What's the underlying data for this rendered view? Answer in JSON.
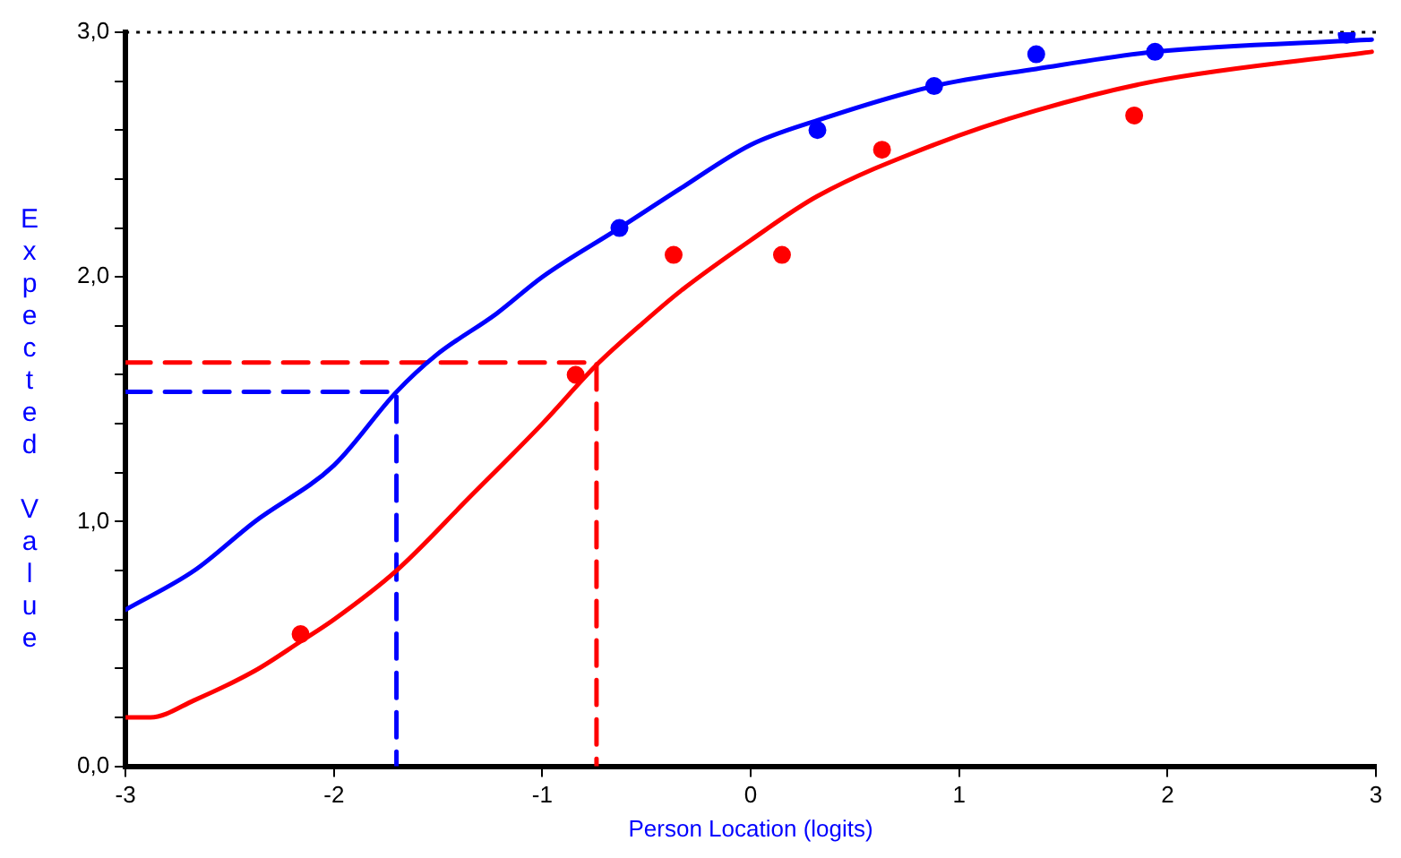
{
  "chart_data": {
    "type": "line",
    "xlabel": "Person Location (logits)",
    "ylabel": "Expected Value",
    "xlim": [
      -3,
      3
    ],
    "xticks": [
      -3,
      -2,
      -1,
      0,
      1,
      2,
      3
    ],
    "ylim": [
      0,
      3
    ],
    "yticks": [
      {
        "value": 0,
        "label": "0,0"
      },
      {
        "value": 0.2,
        "label": null
      },
      {
        "value": 0.4,
        "label": null
      },
      {
        "value": 0.6,
        "label": null
      },
      {
        "value": 0.8,
        "label": null
      },
      {
        "value": 1,
        "label": "1,0"
      },
      {
        "value": 1.2,
        "label": null
      },
      {
        "value": 1.4,
        "label": null
      },
      {
        "value": 1.6,
        "label": null
      },
      {
        "value": 1.8,
        "label": null
      },
      {
        "value": 2,
        "label": "2,0"
      },
      {
        "value": 2.2,
        "label": null
      },
      {
        "value": 2.4,
        "label": null
      },
      {
        "value": 2.6,
        "label": null
      },
      {
        "value": 2.8,
        "label": null
      },
      {
        "value": 3,
        "label": "3,0"
      }
    ],
    "grid": false,
    "legend": false,
    "marker": "none",
    "line_style": "solid",
    "ref_lines": [
      {
        "axis": "y",
        "value": 3,
        "color": "#000000",
        "line_style": "dotted"
      }
    ],
    "series": [
      {
        "color": "#0000ff",
        "x": [
          -3,
          -2.67,
          -2.38,
          -2,
          -1.7,
          -1.51,
          -1.22,
          -1,
          -0.63,
          -0.34,
          0,
          0.32,
          0.88,
          1.37,
          1.94,
          2.98
        ],
        "values": [
          0.64,
          0.8,
          1.0,
          1.23,
          1.53,
          1.68,
          1.85,
          2.0,
          2.2,
          2.36,
          2.54,
          2.64,
          2.78,
          2.85,
          2.92,
          2.97
        ]
      },
      {
        "color": "#ff0000",
        "x": [
          -3,
          -2.88,
          -2.67,
          -2.38,
          -2.16,
          -2,
          -1.7,
          -1.36,
          -1,
          -0.74,
          -0.52,
          -0.34,
          0,
          0.32,
          0.88,
          1.37,
          1.94,
          2.98
        ],
        "values": [
          0.2,
          0.2,
          0.27,
          0.39,
          0.51,
          0.6,
          0.8,
          1.09,
          1.4,
          1.64,
          1.81,
          1.94,
          2.15,
          2.33,
          2.54,
          2.68,
          2.8,
          2.92
        ]
      },
      {
        "type": "scatter",
        "marker": "circle",
        "color": "#0000ff",
        "x": [
          -0.63,
          0.32,
          0.88,
          1.37,
          1.94,
          2.86
        ],
        "values": [
          2.2,
          2.6,
          2.78,
          2.91,
          2.92,
          2.99
        ]
      },
      {
        "type": "scatter",
        "marker": "circle",
        "color": "#ff0000",
        "x": [
          -2.16,
          -0.84,
          -0.37,
          0.15,
          0.63,
          1.84
        ],
        "values": [
          0.54,
          1.6,
          2.09,
          2.09,
          2.52,
          2.66
        ]
      },
      {
        "type": "line",
        "line_style": "dashed",
        "color": "#0000ff",
        "x": [
          -3,
          -1.7,
          -1.7
        ],
        "values": [
          1.53,
          1.53,
          0
        ]
      },
      {
        "type": "line",
        "line_style": "dashed",
        "color": "#ff0000",
        "x": [
          -3,
          -0.74,
          -0.74
        ],
        "values": [
          1.65,
          1.65,
          0
        ]
      }
    ]
  }
}
